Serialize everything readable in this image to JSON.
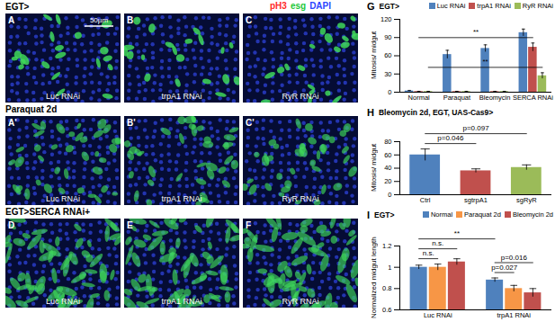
{
  "image_panels": {
    "stain_legend": [
      {
        "text": "pH3",
        "color": "#ff2a2a"
      },
      {
        "text": "esg",
        "color": "#22c83a"
      },
      {
        "text": "DAPI",
        "color": "#2c46ff"
      }
    ],
    "scale_bar": "50µm",
    "rows": [
      {
        "label": "EGT>",
        "panels": [
          {
            "letter": "A",
            "text": "Luc RNAi"
          },
          {
            "letter": "B",
            "text": "trpA1 RNAi"
          },
          {
            "letter": "C",
            "text": "RyR RNAi"
          }
        ]
      },
      {
        "label": "Paraquat 2d",
        "panels": [
          {
            "letter": "A'",
            "text": "Luc RNAi"
          },
          {
            "letter": "B'",
            "text": "trpA1 RNAi"
          },
          {
            "letter": "C'",
            "text": "RyR RNAi"
          }
        ]
      },
      {
        "label": "EGT>SERCA RNAi+",
        "panels": [
          {
            "letter": "D",
            "text": "Luc RNAi"
          },
          {
            "letter": "E",
            "text": "trpA1 RNAi"
          },
          {
            "letter": "F",
            "text": "RyR RNAi"
          }
        ]
      }
    ]
  },
  "chart_data": [
    {
      "panel": "G",
      "type": "bar",
      "title": "EGT>",
      "ylabel": "Mitosis/ midgut",
      "categories": [
        "Normal",
        "Paraquat",
        "Bleomycin",
        "SERCA RNAi"
      ],
      "series": [
        {
          "name": "Luc RNAi",
          "color": "#4f81bd",
          "values": [
            2,
            62,
            72,
            98
          ],
          "errors": [
            1,
            7,
            6,
            6
          ]
        },
        {
          "name": "trpA1 RNAi",
          "color": "#c0504d",
          "values": [
            1,
            1,
            1,
            74
          ],
          "errors": [
            0.5,
            0.5,
            0.5,
            7
          ]
        },
        {
          "name": "RyR RNAi",
          "color": "#9bbb59",
          "values": [
            1,
            1,
            1,
            27
          ],
          "errors": [
            0.5,
            0.5,
            0.5,
            5
          ]
        }
      ],
      "ylim": [
        0,
        120
      ],
      "yticks": [
        0,
        30,
        60,
        90,
        120
      ],
      "legend": "top",
      "annotations": [
        {
          "text": "**",
          "from": {
            "category": "Normal",
            "series": "trpA1 RNAi"
          },
          "to": {
            "category": "SERCA RNAi",
            "series": "trpA1 RNAi"
          }
        },
        {
          "text": "**",
          "from": {
            "category": "Normal",
            "series": "RyR RNAi"
          },
          "to": {
            "category": "SERCA RNAi",
            "series": "RyR RNAi"
          }
        }
      ]
    },
    {
      "panel": "H",
      "type": "bar",
      "title": "Bleomycin 2d, EGT, UAS-Cas9>",
      "ylabel": "Mitosis/ midgut",
      "categories": [
        "Ctrl",
        "sgtrpA1",
        "sgRyR"
      ],
      "values": [
        60,
        36,
        41
      ],
      "errors": [
        9,
        3,
        4
      ],
      "colors": [
        "#4f81bd",
        "#c0504d",
        "#9bbb59"
      ],
      "ylim": [
        0,
        80
      ],
      "yticks": [
        0,
        20,
        40,
        60,
        80
      ],
      "annotations": [
        {
          "text": "p=0.046",
          "from": {
            "category": "Ctrl"
          },
          "to": {
            "category": "sgtrpA1"
          }
        },
        {
          "text": "p=0.097",
          "from": {
            "category": "Ctrl"
          },
          "to": {
            "category": "sgRyR"
          }
        }
      ]
    },
    {
      "panel": "I",
      "type": "bar",
      "title": "EGT>",
      "ylabel": "Normalized midgut length",
      "categories": [
        "Luc RNAi",
        "trpA1 RNAi"
      ],
      "series": [
        {
          "name": "Normal",
          "color": "#4f81bd",
          "values": [
            1.0,
            0.88
          ],
          "errors": [
            0.02,
            0.02
          ]
        },
        {
          "name": "Paraquat 2d",
          "color": "#f79646",
          "values": [
            1.0,
            0.8
          ],
          "errors": [
            0.03,
            0.03
          ]
        },
        {
          "name": "Bleomycin 2d",
          "color": "#c0504d",
          "values": [
            1.05,
            0.76
          ],
          "errors": [
            0.03,
            0.04
          ]
        }
      ],
      "ylim": [
        0.6,
        1.2
      ],
      "yticks": [
        0.6,
        0.8,
        1,
        1.2
      ],
      "legend": "top",
      "annotations": [
        {
          "text": "n.s.",
          "from": {
            "category": "Luc RNAi",
            "series": "Normal"
          },
          "to": {
            "category": "Luc RNAi",
            "series": "Paraquat 2d"
          }
        },
        {
          "text": "n.s.",
          "from": {
            "category": "Luc RNAi",
            "series": "Normal"
          },
          "to": {
            "category": "Luc RNAi",
            "series": "Bleomycin 2d"
          }
        },
        {
          "text": "p=0.027",
          "from": {
            "category": "trpA1 RNAi",
            "series": "Normal"
          },
          "to": {
            "category": "trpA1 RNAi",
            "series": "Paraquat 2d"
          }
        },
        {
          "text": "p=0.016",
          "from": {
            "category": "trpA1 RNAi",
            "series": "Normal"
          },
          "to": {
            "category": "trpA1 RNAi",
            "series": "Bleomycin 2d"
          }
        },
        {
          "text": "**",
          "from": {
            "category": "Luc RNAi",
            "series": "Normal"
          },
          "to": {
            "category": "trpA1 RNAi",
            "series": "Normal"
          }
        }
      ]
    }
  ]
}
